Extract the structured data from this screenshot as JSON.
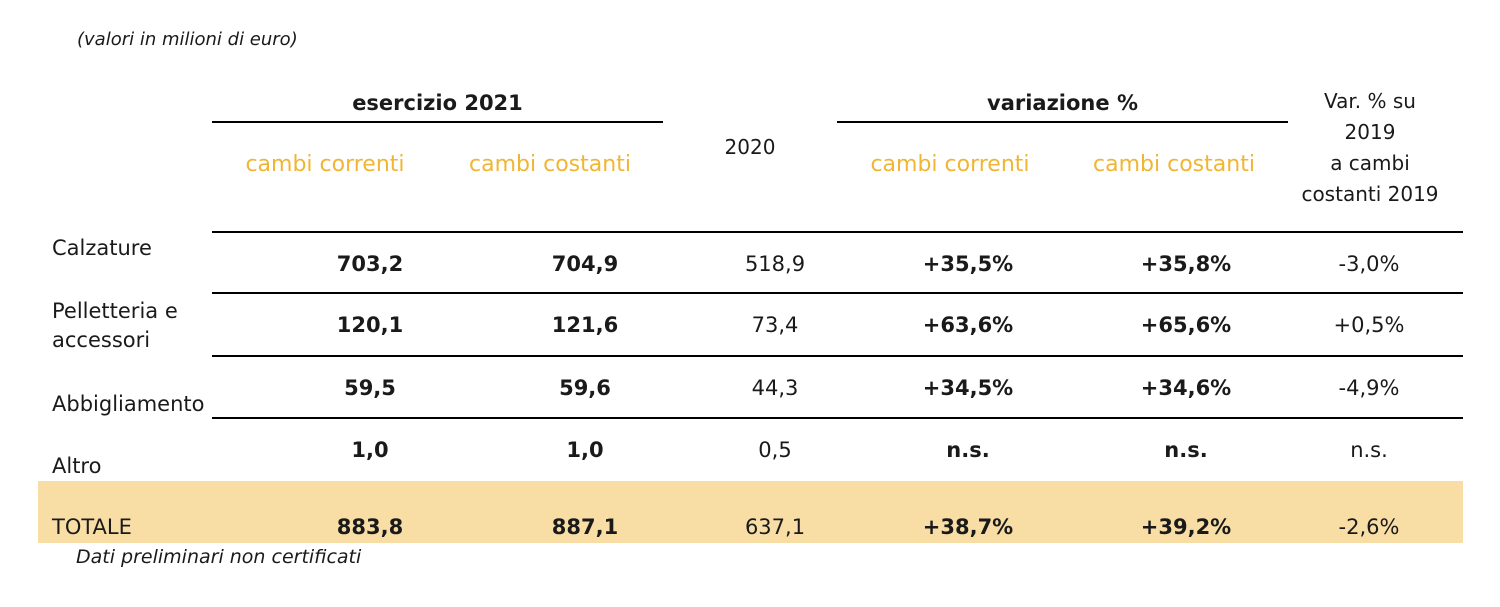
{
  "notes": {
    "top": "(valori in milioni di euro)",
    "bottom": "Dati preliminari non certificati"
  },
  "header": {
    "group_2021": "esercizio 2021",
    "group_variazione": "variazione %",
    "col_2020": "2020",
    "sub_cambi_correnti": "cambi correnti",
    "sub_cambi_costanti": "cambi costanti",
    "var_2019_lines": [
      "Var. % su",
      "2019",
      "a cambi",
      "costanti 2019"
    ]
  },
  "rows": [
    {
      "label": "Calzature",
      "c2021_correnti": "703,2",
      "c2021_costanti": "704,9",
      "c2020": "518,9",
      "var_correnti": "+35,5%",
      "var_costanti": "+35,8%",
      "var_2019": "-3,0%"
    },
    {
      "label": "Pelletteria e accessori",
      "c2021_correnti": "120,1",
      "c2021_costanti": "121,6",
      "c2020": "73,4",
      "var_correnti": "+63,6%",
      "var_costanti": "+65,6%",
      "var_2019": "+0,5%"
    },
    {
      "label": "Abbigliamento",
      "c2021_correnti": "59,5",
      "c2021_costanti": "59,6",
      "c2020": "44,3",
      "var_correnti": "+34,5%",
      "var_costanti": "+34,6%",
      "var_2019": "-4,9%"
    },
    {
      "label": "Altro",
      "c2021_correnti": "1,0",
      "c2021_costanti": "1,0",
      "c2020": "0,5",
      "var_correnti": "n.s.",
      "var_costanti": "n.s.",
      "var_2019": "n.s."
    }
  ],
  "total": {
    "label": "TOTALE",
    "c2021_correnti": "883,8",
    "c2021_costanti": "887,1",
    "c2020": "637,1",
    "var_correnti": "+38,7%",
    "var_costanti": "+39,2%",
    "var_2019": "-2,6%"
  },
  "colors": {
    "header_accent": "#f2b533",
    "total_fill": "#f8dda5"
  }
}
